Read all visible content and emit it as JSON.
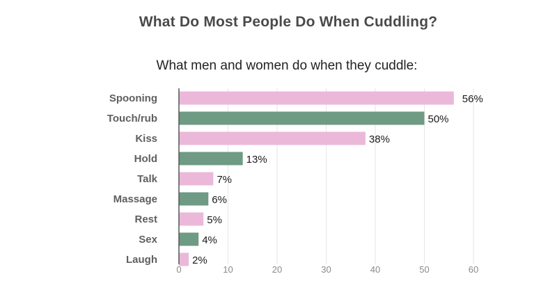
{
  "chart_data": {
    "type": "bar",
    "orientation": "horizontal",
    "title": "What Do Most People Do When Cuddling?",
    "subtitle": "What men and women do when they cuddle:",
    "categories": [
      "Spooning",
      "Touch/rub",
      "Kiss",
      "Hold",
      "Talk",
      "Massage",
      "Rest",
      "Sex",
      "Laugh"
    ],
    "values": [
      56,
      50,
      38,
      13,
      7,
      6,
      5,
      4,
      2
    ],
    "value_labels": [
      "56%",
      "50%",
      "38%",
      "13%",
      "7%",
      "6%",
      "5%",
      "4%",
      "2%"
    ],
    "xlim": [
      0,
      60
    ],
    "xticks": [
      0,
      10,
      20,
      30,
      40,
      50,
      60
    ],
    "xtick_labels": [
      "0",
      "10",
      "20",
      "30",
      "40",
      "50",
      "60"
    ],
    "grid": true,
    "colors": [
      "#ebb8da",
      "#6f9a84"
    ]
  }
}
